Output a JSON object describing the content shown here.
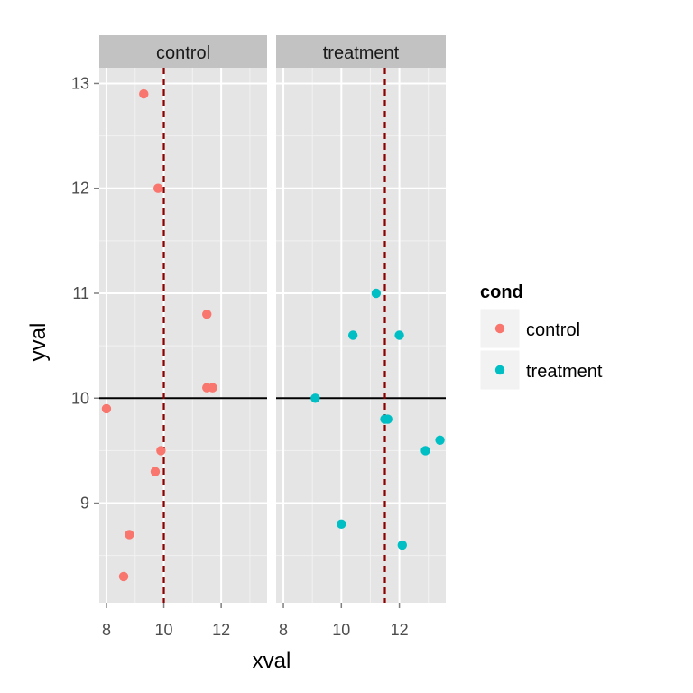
{
  "chart_data": {
    "type": "scatter",
    "xlabel": "xval",
    "ylabel": "yval",
    "xlim": [
      7.75,
      13.6
    ],
    "ylim": [
      8.05,
      13.15
    ],
    "x_ticks": [
      8,
      10,
      12
    ],
    "y_ticks": [
      9,
      10,
      11,
      12,
      13
    ],
    "x_tick_labels": [
      "8",
      "10",
      "12"
    ],
    "y_tick_labels": [
      "9",
      "10",
      "11",
      "12",
      "13"
    ],
    "grid": true,
    "hline": {
      "y": 10,
      "color": "#000000"
    },
    "legend": {
      "title": "cond",
      "position": "right",
      "entries": [
        {
          "label": "control",
          "color": "#F8766D"
        },
        {
          "label": "treatment",
          "color": "#00BFC4"
        }
      ]
    },
    "facets": [
      {
        "label": "control",
        "color": "#F8766D",
        "vline": {
          "x": 10,
          "color": "#8B0000",
          "style": "dashed"
        },
        "points": [
          {
            "x": 9.3,
            "y": 12.9
          },
          {
            "x": 9.8,
            "y": 12.0
          },
          {
            "x": 11.5,
            "y": 10.8
          },
          {
            "x": 11.5,
            "y": 10.1
          },
          {
            "x": 11.7,
            "y": 10.1
          },
          {
            "x": 8.0,
            "y": 9.9
          },
          {
            "x": 9.9,
            "y": 9.5
          },
          {
            "x": 9.7,
            "y": 9.3
          },
          {
            "x": 8.8,
            "y": 8.7
          },
          {
            "x": 8.6,
            "y": 8.3
          }
        ]
      },
      {
        "label": "treatment",
        "color": "#00BFC4",
        "vline": {
          "x": 11.5,
          "color": "#8B0000",
          "style": "dashed"
        },
        "points": [
          {
            "x": 11.2,
            "y": 11.0
          },
          {
            "x": 10.4,
            "y": 10.6
          },
          {
            "x": 12.0,
            "y": 10.6
          },
          {
            "x": 9.1,
            "y": 10.0
          },
          {
            "x": 11.5,
            "y": 9.8
          },
          {
            "x": 11.6,
            "y": 9.8
          },
          {
            "x": 13.4,
            "y": 9.6
          },
          {
            "x": 12.9,
            "y": 9.5
          },
          {
            "x": 10.0,
            "y": 8.8
          },
          {
            "x": 12.1,
            "y": 8.6
          }
        ]
      }
    ]
  }
}
